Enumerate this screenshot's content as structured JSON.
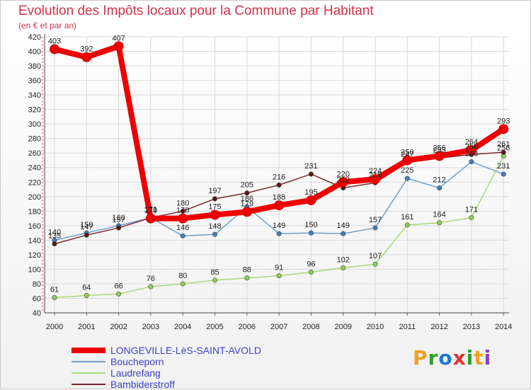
{
  "title": "Evolution des Impôts locaux pour la Commune par Habitant",
  "subtitle": "(en € et par an)",
  "logo": {
    "text": [
      "P",
      "r",
      "o",
      "x",
      "i",
      "t",
      "i"
    ],
    "colors": [
      "#f0a020",
      "#2ca02c",
      "#1f77d0",
      "#e03030",
      "#2ca02c",
      "#f0a020",
      "#8a3fc0"
    ]
  },
  "chart_data": {
    "type": "line",
    "x": [
      2000,
      2001,
      2002,
      2003,
      2004,
      2005,
      2006,
      2007,
      2008,
      2009,
      2010,
      2011,
      2012,
      2013,
      2014
    ],
    "x_tick_labels": [
      "2000",
      "2001",
      "2002",
      "2003",
      "2004",
      "2005",
      "2006",
      "2007",
      "2008",
      "2009",
      "2010",
      "2011",
      "2012",
      "2013",
      "2014"
    ],
    "ylim": [
      40,
      420
    ],
    "y_ticks": [
      "40",
      "60",
      "80",
      "100",
      "120",
      "140",
      "160",
      "180",
      "200",
      "220",
      "240",
      "260",
      "280",
      "300",
      "320",
      "340",
      "360",
      "380",
      "400",
      "420"
    ],
    "grid": true,
    "legend_position": "bottom-left",
    "series": [
      {
        "name": "LONGEVILLE-LèS-SAINT-AVOLD",
        "color": "#ee0000",
        "marker": "#ee0000",
        "width": 8,
        "values": [
          403,
          392,
          407,
          170,
          170,
          175,
          179,
          188,
          195,
          220,
          224,
          250,
          256,
          264,
          293
        ],
        "labels": [
          "403",
          "392",
          "407",
          "170",
          "170",
          "175",
          "179",
          "188",
          "195",
          "220",
          "224",
          "250",
          "256",
          "264",
          "293"
        ]
      },
      {
        "name": "Boucheporn",
        "color": "#6fa0cc",
        "marker": "#3f7fc0",
        "width": 1.5,
        "values": [
          140,
          150,
          160,
          171,
          146,
          148,
          186,
          149,
          150,
          149,
          157,
          225,
          212,
          248,
          231
        ],
        "labels": [
          "140",
          "150",
          "160",
          "171",
          "146",
          "148",
          "186",
          "149",
          "150",
          "149",
          "157",
          "225",
          "212",
          "248",
          "231"
        ]
      },
      {
        "name": "Laudrefang",
        "color": "#a6d97a",
        "marker": "#8fcf52",
        "width": 1.5,
        "values": [
          61,
          64,
          66,
          76,
          80,
          85,
          88,
          91,
          96,
          102,
          107,
          161,
          164,
          171,
          256
        ],
        "labels": [
          "61",
          "64",
          "66",
          "76",
          "80",
          "85",
          "88",
          "91",
          "96",
          "102",
          "107",
          "161",
          "164",
          "171",
          "256"
        ]
      },
      {
        "name": "Bambiderstroff",
        "color": "#7a2a2a",
        "marker": "#5a1515",
        "width": 1.5,
        "values": [
          135,
          147,
          157,
          171,
          180,
          197,
          205,
          216,
          231,
          212,
          219,
          247,
          253,
          258,
          261
        ],
        "labels": [
          "135",
          "147",
          "157",
          "171",
          "180",
          "197",
          "205",
          "216",
          "231",
          "212",
          "219",
          "247",
          "253",
          "258",
          "261"
        ]
      }
    ]
  }
}
